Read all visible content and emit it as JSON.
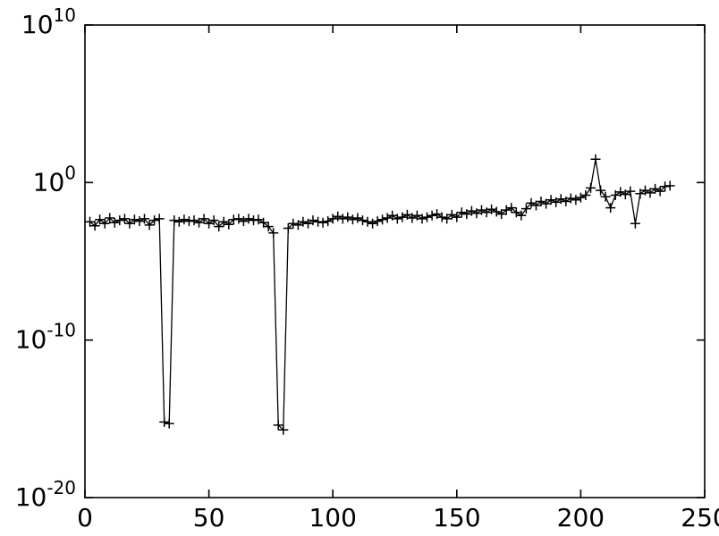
{
  "figure": {
    "background": "#ffffff",
    "axis_color": "#000000"
  },
  "chart_data": {
    "type": "line",
    "title": "",
    "xlabel": "",
    "ylabel": "",
    "marker": "+",
    "line_color": "#000000",
    "marker_color": "#000000",
    "grid": false,
    "legend": null,
    "y_scale": "log",
    "xlim": [
      0,
      250
    ],
    "ylim_exponents": [
      -20,
      10
    ],
    "x_ticks": [
      0,
      50,
      100,
      150,
      200,
      250
    ],
    "y_tick_exponents": [
      10,
      0,
      -10,
      -20
    ],
    "x": [
      2,
      4,
      6,
      8,
      10,
      12,
      14,
      16,
      18,
      20,
      22,
      24,
      26,
      28,
      30,
      32,
      34,
      36,
      38,
      40,
      42,
      44,
      46,
      48,
      50,
      52,
      54,
      56,
      58,
      60,
      62,
      64,
      66,
      68,
      70,
      72,
      74,
      76,
      78,
      80,
      82,
      84,
      86,
      88,
      90,
      92,
      94,
      96,
      98,
      100,
      102,
      104,
      106,
      108,
      110,
      112,
      114,
      116,
      118,
      120,
      122,
      124,
      126,
      128,
      130,
      132,
      134,
      136,
      138,
      140,
      142,
      144,
      146,
      148,
      150,
      152,
      154,
      156,
      158,
      160,
      162,
      164,
      166,
      168,
      170,
      172,
      174,
      176,
      178,
      180,
      182,
      184,
      186,
      188,
      190,
      192,
      194,
      196,
      198,
      200,
      202,
      204,
      206,
      208,
      210,
      212,
      214,
      216,
      218,
      220,
      222,
      224,
      226,
      228,
      230,
      232,
      234,
      236
    ],
    "y": [
      0.0032,
      0.0018,
      0.0045,
      0.0025,
      0.0056,
      0.0028,
      0.004,
      0.005,
      0.0025,
      0.0045,
      0.0035,
      0.005,
      0.002,
      0.004,
      0.005,
      6.3e-16,
      5e-16,
      0.004,
      0.0032,
      0.0045,
      0.0035,
      0.004,
      0.0028,
      0.005,
      0.0025,
      0.004,
      0.0016,
      0.0032,
      0.0022,
      0.0045,
      0.005,
      0.0035,
      0.005,
      0.004,
      0.0045,
      0.0028,
      0.0016,
      0.00063,
      4e-16,
      2e-16,
      0.00126,
      0.0025,
      0.002,
      0.0032,
      0.0025,
      0.004,
      0.0032,
      0.0028,
      0.0035,
      0.005,
      0.007,
      0.005,
      0.0063,
      0.0045,
      0.0056,
      0.004,
      0.0032,
      0.0025,
      0.0035,
      0.0045,
      0.0056,
      0.008,
      0.005,
      0.0063,
      0.009,
      0.0056,
      0.008,
      0.005,
      0.0063,
      0.008,
      0.01,
      0.0063,
      0.005,
      0.009,
      0.0063,
      0.0126,
      0.01,
      0.0158,
      0.0112,
      0.018,
      0.0126,
      0.02,
      0.014,
      0.01,
      0.018,
      0.025,
      0.0126,
      0.008,
      0.022,
      0.05,
      0.035,
      0.063,
      0.045,
      0.08,
      0.056,
      0.09,
      0.063,
      0.1,
      0.08,
      0.112,
      0.158,
      0.45,
      30,
      0.32,
      0.126,
      0.025,
      0.158,
      0.25,
      0.178,
      0.28,
      0.0025,
      0.2,
      0.32,
      0.22,
      0.4,
      0.28,
      0.56,
      0.63
    ]
  }
}
